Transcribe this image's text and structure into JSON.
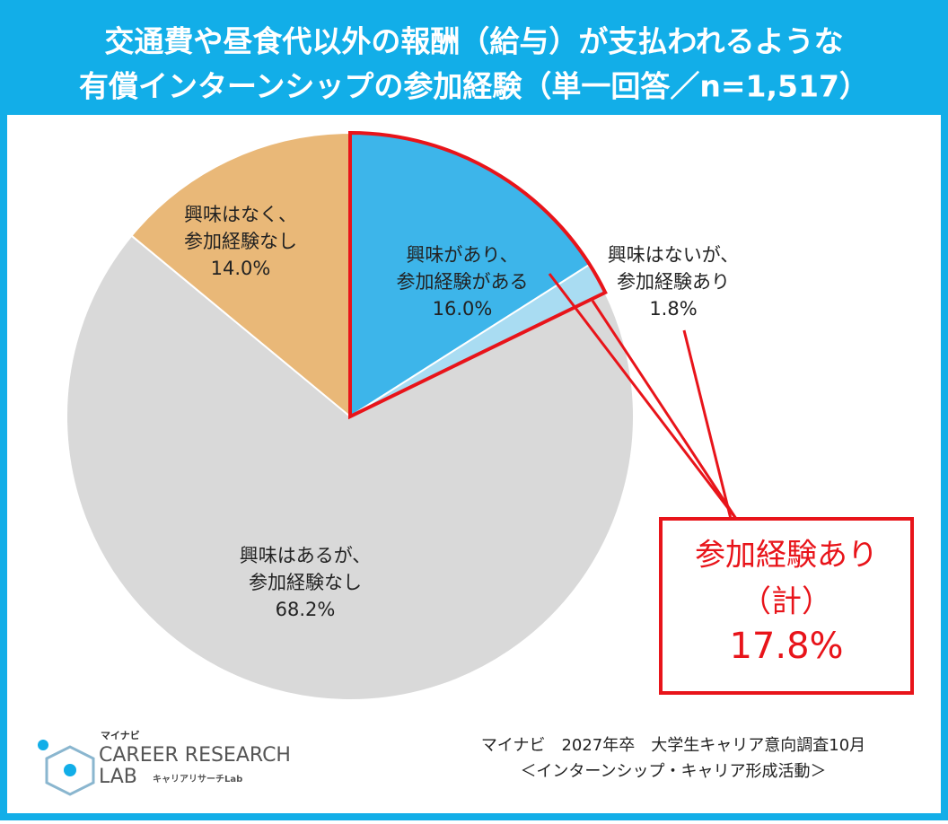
{
  "chart_data": {
    "type": "pie",
    "title_lines": [
      "交通費や昼食代以外の報酬（給与）が支払われるような",
      "有償インターンシップの参加経験（単一回答／n=1,517）"
    ],
    "categories": [
      [
        "興味があり、",
        "参加経験がある"
      ],
      [
        "興味はないが、",
        "参加経験あり"
      ],
      [
        "興味はあるが、",
        "参加経験なし"
      ],
      [
        "興味はなく、",
        "参加経験なし"
      ]
    ],
    "values": [
      16.0,
      1.8,
      68.2,
      14.0
    ],
    "value_labels": [
      "16.0%",
      "1.8%",
      "68.2%",
      "14.0%"
    ],
    "colors": [
      "#3db5ea",
      "#a9dcf2",
      "#d9d9d9",
      "#e9b878"
    ],
    "annotation": {
      "text_lines": [
        "参加経験あり",
        "（計）"
      ],
      "value": 17.8,
      "label": "17.8%",
      "color": "#e8141a"
    },
    "source_lines": [
      "マイナビ　2027年卒　大学生キャリア意向調査10月",
      "＜インターンシップ・キャリア形成活動＞"
    ],
    "logo": {
      "brand": "マイナビ",
      "line1": "CAREER RESEARCH",
      "line2": "LAB",
      "sub": "キャリアリサーチLab"
    }
  }
}
